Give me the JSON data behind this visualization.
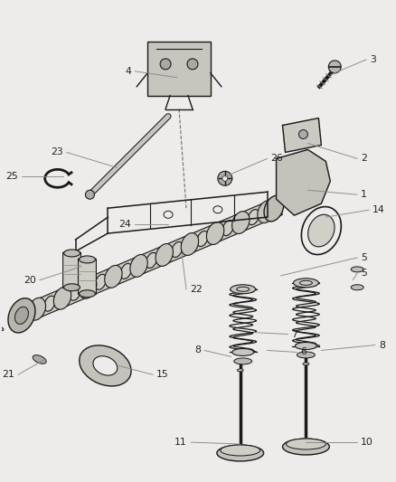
{
  "bg_color": "#edecea",
  "line_color": "#1a1a1a",
  "label_color": "#222222",
  "figsize": [
    4.38,
    5.33
  ],
  "dpi": 100
}
